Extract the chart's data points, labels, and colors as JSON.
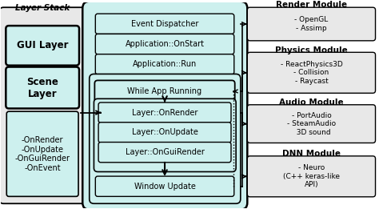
{
  "bg_color": "#ffffff",
  "light_cyan": "#cdf0ee",
  "light_gray": "#e8e8e8",
  "box_edge": "#000000",
  "layer_stack_title": "Layer Stack",
  "layer_methods": "-OnRender\n-OnUpdate\n-OnGuiRender\n-OnEvent",
  "center_boxes_top": [
    "Event Dispatcher",
    "Application::OnStart",
    "Application::Run"
  ],
  "center_while": "While App Running",
  "center_layer_boxes": [
    "Layer::OnRender",
    "Layer::OnUpdate",
    "Layer::OnGuiRender"
  ],
  "center_window": "Window Update",
  "right_modules": [
    {
      "title": "Render Module",
      "content": "- OpenGL\n- Assimp"
    },
    {
      "title": "Physics Module",
      "content": "- ReactPhysics3D\n- Collision\n- Raycast"
    },
    {
      "title": "Audio Module",
      "content": "- PortAudio\n- SteamAudio\n  3D sound"
    },
    {
      "title": "DNN Module",
      "content": "- Neuro\n(C++ keras-like\nAPI)"
    }
  ]
}
